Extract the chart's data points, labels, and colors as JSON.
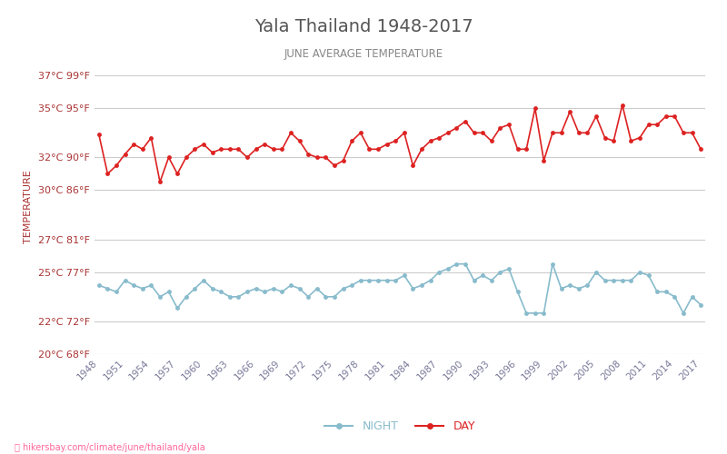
{
  "title": "Yala Thailand 1948-2017",
  "subtitle": "JUNE AVERAGE TEMPERATURE",
  "xlabel_url": "hikersbay.com/climate/june/thailand/yala",
  "ylabel": "TEMPERATURE",
  "background_color": "#ffffff",
  "plot_bg_color": "#ffffff",
  "grid_color": "#cccccc",
  "title_color": "#555555",
  "subtitle_color": "#888888",
  "ylabel_color": "#aa3333",
  "ytick_color": "#aa3333",
  "xtick_color": "#777799",
  "night_color": "#88bbcc",
  "day_color": "#dd2222",
  "years": [
    1948,
    1949,
    1950,
    1951,
    1952,
    1953,
    1954,
    1955,
    1956,
    1957,
    1958,
    1959,
    1960,
    1961,
    1962,
    1963,
    1964,
    1965,
    1966,
    1967,
    1968,
    1969,
    1970,
    1971,
    1972,
    1973,
    1974,
    1975,
    1976,
    1977,
    1978,
    1979,
    1980,
    1981,
    1982,
    1983,
    1984,
    1985,
    1986,
    1987,
    1988,
    1989,
    1990,
    1991,
    1992,
    1993,
    1994,
    1995,
    1996,
    1997,
    1998,
    1999,
    2000,
    2001,
    2002,
    2003,
    2004,
    2005,
    2006,
    2007,
    2008,
    2009,
    2010,
    2011,
    2012,
    2013,
    2014,
    2015,
    2016,
    2017
  ],
  "day_temps": [
    33.4,
    31.0,
    31.5,
    32.2,
    32.8,
    32.5,
    33.2,
    30.5,
    32.0,
    31.0,
    32.0,
    32.5,
    32.8,
    32.3,
    32.5,
    32.5,
    32.5,
    32.0,
    32.5,
    32.8,
    32.5,
    32.5,
    33.5,
    33.0,
    32.2,
    32.0,
    32.0,
    31.5,
    31.8,
    33.0,
    33.5,
    32.5,
    32.5,
    32.8,
    33.0,
    33.5,
    31.5,
    32.5,
    33.0,
    33.2,
    33.5,
    33.8,
    34.2,
    33.5,
    33.5,
    33.0,
    33.8,
    34.0,
    32.5,
    32.5,
    35.0,
    31.8,
    33.5,
    33.5,
    34.8,
    33.5,
    33.5,
    34.5,
    33.2,
    33.0,
    35.2,
    33.0,
    33.2,
    34.0,
    34.0,
    34.5,
    34.5,
    33.5,
    33.5,
    32.5
  ],
  "night_temps": [
    24.2,
    24.0,
    23.8,
    24.5,
    24.2,
    24.0,
    24.2,
    23.5,
    23.8,
    22.8,
    23.5,
    24.0,
    24.5,
    24.0,
    23.8,
    23.5,
    23.5,
    23.8,
    24.0,
    23.8,
    24.0,
    23.8,
    24.2,
    24.0,
    23.5,
    24.0,
    23.5,
    23.5,
    24.0,
    24.2,
    24.5,
    24.5,
    24.5,
    24.5,
    24.5,
    24.8,
    24.0,
    24.2,
    24.5,
    25.0,
    25.2,
    25.5,
    25.5,
    24.5,
    24.8,
    24.5,
    25.0,
    25.2,
    23.8,
    22.5,
    22.5,
    22.5,
    25.5,
    24.0,
    24.2,
    24.0,
    24.2,
    25.0,
    24.5,
    24.5,
    24.5,
    24.5,
    25.0,
    24.8,
    23.8,
    23.8,
    23.5,
    22.5,
    23.5,
    23.0
  ],
  "ylim": [
    20,
    38
  ],
  "yticks_c": [
    20,
    22,
    25,
    27,
    30,
    32,
    35,
    37
  ],
  "yticks_f": [
    68,
    72,
    77,
    81,
    86,
    90,
    95,
    99
  ],
  "xtick_years": [
    1948,
    1951,
    1954,
    1957,
    1960,
    1963,
    1966,
    1969,
    1972,
    1975,
    1978,
    1981,
    1984,
    1987,
    1990,
    1993,
    1996,
    1999,
    2002,
    2005,
    2008,
    2011,
    2014,
    2017
  ]
}
